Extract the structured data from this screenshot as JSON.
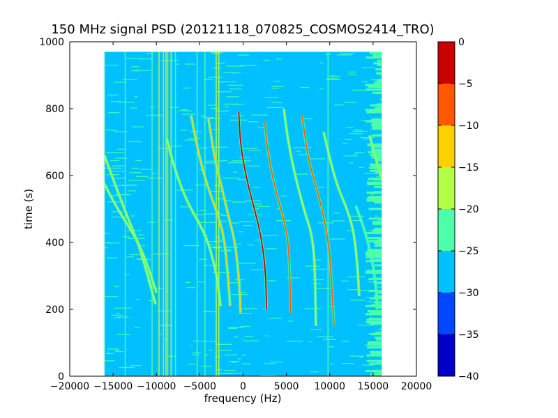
{
  "chart_data": {
    "type": "heatmap",
    "title": "150 MHz signal PSD (20121118_070825_COSMOS2414_TRO)",
    "xlabel": "frequency (Hz)",
    "ylabel": "time (s)",
    "xlim": [
      -20000,
      20000
    ],
    "ylim": [
      0,
      1000
    ],
    "x_ticks": [
      -20000,
      -15000,
      -10000,
      -5000,
      0,
      5000,
      10000,
      15000,
      20000
    ],
    "x_tick_labels": [
      "−20000",
      "−15000",
      "−10000",
      "−5000",
      "0",
      "5000",
      "10000",
      "15000",
      "20000"
    ],
    "y_ticks": [
      0,
      200,
      400,
      600,
      800,
      1000
    ],
    "y_tick_labels": [
      "0",
      "200",
      "400",
      "600",
      "800",
      "1000"
    ],
    "data_extent": {
      "x": [
        -16000,
        16000
      ],
      "y": [
        0,
        970
      ]
    },
    "colorbar": {
      "range": [
        -40,
        0
      ],
      "ticks": [
        0,
        -5,
        -10,
        -15,
        -20,
        -25,
        -30,
        -35,
        -40
      ],
      "tick_labels": [
        "0",
        "−5",
        "−10",
        "−15",
        "−20",
        "−25",
        "−30",
        "−35",
        "−40"
      ],
      "levels": [
        {
          "from": -40,
          "to": -35,
          "color": "#0000c8"
        },
        {
          "from": -35,
          "to": -30,
          "color": "#0047ff"
        },
        {
          "from": -30,
          "to": -25,
          "color": "#00c0ff"
        },
        {
          "from": -25,
          "to": -20,
          "color": "#4dffa8"
        },
        {
          "from": -20,
          "to": -15,
          "color": "#b3ff45"
        },
        {
          "from": -15,
          "to": -10,
          "color": "#ffd000"
        },
        {
          "from": -10,
          "to": -5,
          "color": "#ff5800"
        },
        {
          "from": -5,
          "to": 0,
          "color": "#c80000"
        }
      ]
    },
    "background_color": "#00c0ff",
    "noise_color": "#4dffa8",
    "vertical_lines": [
      {
        "x": -16000,
        "color": "#4dffa8"
      },
      {
        "x": -13600,
        "color": "#4dffa8"
      },
      {
        "x": -10500,
        "color": "#4dffa8"
      },
      {
        "x": -9700,
        "color": "#b3ff45"
      },
      {
        "x": -9200,
        "color": "#ffd000"
      },
      {
        "x": -8900,
        "color": "#b3ff45"
      },
      {
        "x": -8700,
        "color": "#ffd000"
      },
      {
        "x": -8300,
        "color": "#b3ff45"
      },
      {
        "x": -7800,
        "color": "#4dffa8"
      },
      {
        "x": -5300,
        "color": "#4dffa8"
      },
      {
        "x": -4400,
        "color": "#4dffa8"
      },
      {
        "x": -3100,
        "color": "#b3ff45"
      },
      {
        "x": -2800,
        "color": "#b3ff45"
      },
      {
        "x": 9800,
        "color": "#4dffa8"
      }
    ],
    "tracks": [
      {
        "color": "#b3ff45",
        "points": [
          [
            -16000,
            660
          ],
          [
            -15000,
            590
          ],
          [
            -14000,
            520
          ],
          [
            -13000,
            455
          ],
          [
            -12000,
            390
          ],
          [
            -11000,
            300
          ],
          [
            -10100,
            215
          ]
        ]
      },
      {
        "color": "#b3ff45",
        "points": [
          [
            -16000,
            575
          ],
          [
            -15000,
            525
          ],
          [
            -14000,
            480
          ],
          [
            -13000,
            440
          ],
          [
            -12000,
            395
          ],
          [
            -11000,
            330
          ],
          [
            -10000,
            250
          ]
        ]
      },
      {
        "color": "#b3ff45",
        "points": [
          [
            -8800,
            710
          ],
          [
            -8000,
            630
          ],
          [
            -7000,
            555
          ],
          [
            -6000,
            500
          ],
          [
            -5000,
            455
          ],
          [
            -4000,
            400
          ],
          [
            -3000,
            300
          ],
          [
            -2600,
            210
          ]
        ]
      },
      {
        "color": "#ffd000",
        "points": [
          [
            -6000,
            780
          ],
          [
            -5000,
            650
          ],
          [
            -4000,
            560
          ],
          [
            -3000,
            490
          ],
          [
            -2200,
            420
          ],
          [
            -1700,
            290
          ],
          [
            -1500,
            210
          ]
        ]
      },
      {
        "color": "#ffd000",
        "points": [
          [
            -4000,
            770
          ],
          [
            -3200,
            640
          ],
          [
            -2500,
            570
          ],
          [
            -1800,
            490
          ],
          [
            -900,
            400
          ],
          [
            -400,
            270
          ],
          [
            -300,
            190
          ]
        ]
      },
      {
        "color": "#c80000",
        "points": [
          [
            -500,
            790
          ],
          [
            -300,
            690
          ],
          [
            400,
            590
          ],
          [
            1200,
            510
          ],
          [
            2000,
            430
          ],
          [
            2600,
            320
          ],
          [
            2700,
            200
          ]
        ]
      },
      {
        "color": "#ff5800",
        "points": [
          [
            2500,
            760
          ],
          [
            2800,
            680
          ],
          [
            3600,
            570
          ],
          [
            4500,
            490
          ],
          [
            5200,
            410
          ],
          [
            5400,
            300
          ],
          [
            5500,
            190
          ]
        ]
      },
      {
        "color": "#b3ff45",
        "points": [
          [
            4700,
            800
          ],
          [
            5200,
            700
          ],
          [
            6000,
            600
          ],
          [
            7000,
            500
          ],
          [
            8000,
            420
          ],
          [
            8300,
            320
          ],
          [
            8400,
            150
          ]
        ]
      },
      {
        "color": "#ff5800",
        "points": [
          [
            6800,
            780
          ],
          [
            7500,
            650
          ],
          [
            8500,
            560
          ],
          [
            9400,
            470
          ],
          [
            10000,
            370
          ],
          [
            10300,
            240
          ],
          [
            10500,
            150
          ]
        ]
      },
      {
        "color": "#b3ff45",
        "points": [
          [
            9300,
            730
          ],
          [
            10200,
            630
          ],
          [
            11000,
            560
          ],
          [
            12000,
            500
          ],
          [
            12800,
            430
          ],
          [
            13200,
            330
          ],
          [
            13400,
            240
          ]
        ]
      },
      {
        "color": "#4dffa8",
        "points": [
          [
            13000,
            510
          ],
          [
            14000,
            440
          ],
          [
            14800,
            360
          ],
          [
            15300,
            280
          ],
          [
            15500,
            200
          ]
        ]
      },
      {
        "color": "#b3ff45",
        "points": [
          [
            14600,
            720
          ],
          [
            15200,
            660
          ],
          [
            16000,
            590
          ]
        ]
      }
    ]
  }
}
